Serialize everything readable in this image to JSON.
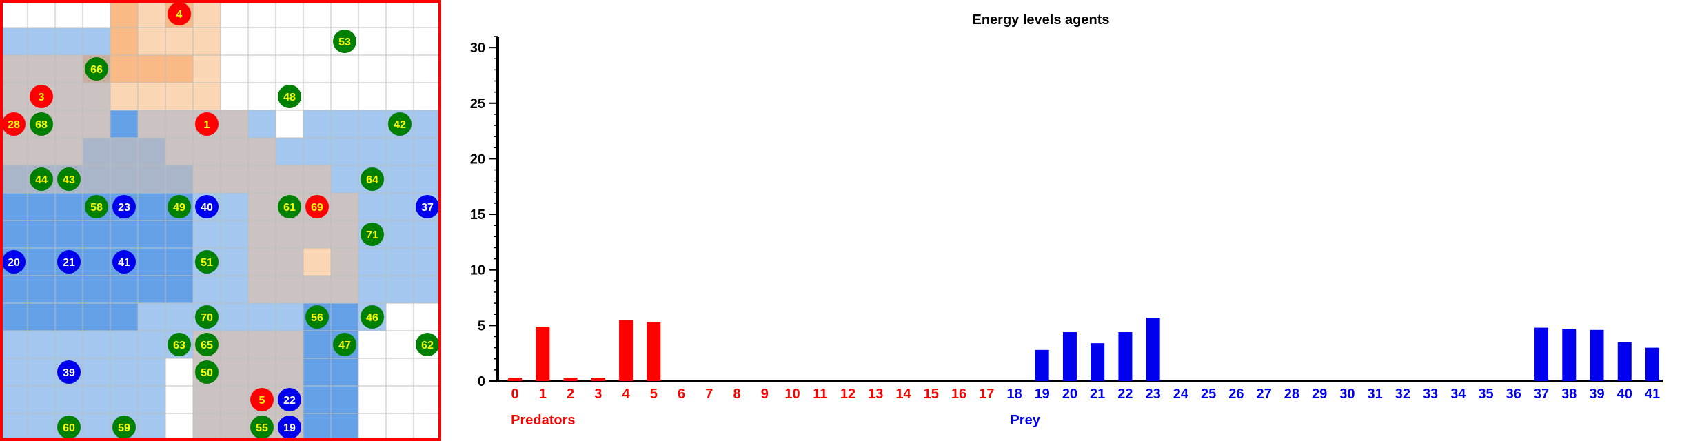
{
  "grid": {
    "rows": 16,
    "cols": 16,
    "colors": {
      "background": "#ffffff",
      "gridline": "#bdbdbd",
      "border": "#ff0000",
      "predator_zone": "#f7a35c",
      "prey_zone": "#4a90e2",
      "predator_agent": "#ff0000",
      "prey_agent": "#0000ee",
      "plant": "#008000",
      "agent_text": "#ffff00",
      "agent_text_prey": "#ffffff"
    },
    "heat_orange": [
      "0000212100000000",
      "0000211100000000",
      "1112222100000000",
      "1111111100000000",
      "1111011110000000",
      "1111111111000000",
      "1111111111110000",
      "0000000001111000",
      "0000000001111000",
      "0000000001111000",
      "0000000001111000",
      "0000000000000000",
      "0000000111100000",
      "0000000111100000",
      "0000000111100000",
      "0000000111100000"
    ],
    "heat_blue": [
      "0000000000000000",
      "1111000000000000",
      "1111000000000000",
      "1111000000000000",
      "1111211111011111",
      "1112221111111111",
      "2222222111111111",
      "2222222111111111",
      "2222222111111111",
      "2222222111101111",
      "2222222111111111",
      "2222211111122100",
      "1111111111122000",
      "1111110111122000",
      "1111110111122000",
      "1111110111122000"
    ],
    "agents": [
      {
        "label": "4",
        "kind": "predator",
        "row": 0,
        "col": 6
      },
      {
        "label": "53",
        "kind": "plant",
        "row": 1,
        "col": 12
      },
      {
        "label": "66",
        "kind": "plant",
        "row": 2,
        "col": 3
      },
      {
        "label": "3",
        "kind": "predator",
        "row": 3,
        "col": 1
      },
      {
        "label": "48",
        "kind": "plant",
        "row": 3,
        "col": 10
      },
      {
        "label": "28",
        "kind": "predator",
        "row": 4,
        "col": 0
      },
      {
        "label": "68",
        "kind": "plant",
        "row": 4,
        "col": 1
      },
      {
        "label": "1",
        "kind": "predator",
        "row": 4,
        "col": 7
      },
      {
        "label": "42",
        "kind": "plant",
        "row": 4,
        "col": 14
      },
      {
        "label": "44",
        "kind": "plant",
        "row": 6,
        "col": 1
      },
      {
        "label": "43",
        "kind": "plant",
        "row": 6,
        "col": 2
      },
      {
        "label": "64",
        "kind": "plant",
        "row": 6,
        "col": 13
      },
      {
        "label": "58",
        "kind": "plant",
        "row": 7,
        "col": 3
      },
      {
        "label": "23",
        "kind": "prey",
        "row": 7,
        "col": 4
      },
      {
        "label": "49",
        "kind": "plant",
        "row": 7,
        "col": 6
      },
      {
        "label": "40",
        "kind": "prey",
        "row": 7,
        "col": 7
      },
      {
        "label": "61",
        "kind": "plant",
        "row": 7,
        "col": 10
      },
      {
        "label": "69",
        "kind": "predator",
        "row": 7,
        "col": 11
      },
      {
        "label": "37",
        "kind": "prey",
        "row": 7,
        "col": 15
      },
      {
        "label": "71",
        "kind": "plant",
        "row": 8,
        "col": 13
      },
      {
        "label": "20",
        "kind": "prey",
        "row": 9,
        "col": 0
      },
      {
        "label": "21",
        "kind": "prey",
        "row": 9,
        "col": 2
      },
      {
        "label": "41",
        "kind": "prey",
        "row": 9,
        "col": 4
      },
      {
        "label": "51",
        "kind": "plant",
        "row": 9,
        "col": 7
      },
      {
        "label": "70",
        "kind": "plant",
        "row": 11,
        "col": 7
      },
      {
        "label": "56",
        "kind": "plant",
        "row": 11,
        "col": 11
      },
      {
        "label": "46",
        "kind": "plant",
        "row": 11,
        "col": 13
      },
      {
        "label": "63",
        "kind": "plant",
        "row": 12,
        "col": 6
      },
      {
        "label": "65",
        "kind": "plant",
        "row": 12,
        "col": 7
      },
      {
        "label": "47",
        "kind": "plant",
        "row": 12,
        "col": 12
      },
      {
        "label": "62",
        "kind": "plant",
        "row": 12,
        "col": 15
      },
      {
        "label": "39",
        "kind": "prey",
        "row": 13,
        "col": 2
      },
      {
        "label": "50",
        "kind": "plant",
        "row": 13,
        "col": 7
      },
      {
        "label": "5",
        "kind": "predator",
        "row": 14,
        "col": 9
      },
      {
        "label": "22",
        "kind": "prey",
        "row": 14,
        "col": 10
      },
      {
        "label": "60",
        "kind": "plant",
        "row": 15,
        "col": 2
      },
      {
        "label": "59",
        "kind": "plant",
        "row": 15,
        "col": 4
      },
      {
        "label": "55",
        "kind": "plant",
        "row": 15,
        "col": 9
      },
      {
        "label": "19",
        "kind": "prey",
        "row": 15,
        "col": 10
      }
    ]
  },
  "chart_data": {
    "type": "bar",
    "title": "Energy levels agents",
    "ylim": [
      0,
      31
    ],
    "yticks": [
      0,
      5,
      10,
      15,
      20,
      25,
      30
    ],
    "categories": [
      "0",
      "1",
      "2",
      "3",
      "4",
      "5",
      "6",
      "7",
      "8",
      "9",
      "10",
      "11",
      "12",
      "13",
      "14",
      "15",
      "16",
      "17",
      "18",
      "19",
      "20",
      "21",
      "22",
      "23",
      "24",
      "25",
      "26",
      "27",
      "28",
      "29",
      "30",
      "31",
      "32",
      "33",
      "34",
      "35",
      "36",
      "37",
      "38",
      "39",
      "40",
      "41"
    ],
    "values": [
      0.3,
      4.9,
      0.3,
      0.3,
      5.5,
      5.3,
      0,
      0,
      0,
      0,
      0,
      0,
      0,
      0,
      0,
      0,
      0,
      0,
      0,
      2.8,
      4.4,
      3.4,
      4.4,
      5.7,
      0,
      0,
      0,
      0,
      0,
      0,
      0,
      0,
      0,
      0,
      0,
      0,
      0,
      4.8,
      4.7,
      4.6,
      3.5,
      3.0
    ],
    "group_labels": [
      {
        "text": "Predators",
        "start": 0,
        "end": 17,
        "color": "#ff0000"
      },
      {
        "text": "Prey",
        "start": 18,
        "end": 41,
        "color": "#0000ee"
      }
    ],
    "colors": {
      "predator": "#ff0000",
      "prey": "#0000ee",
      "axis": "#000000"
    }
  }
}
